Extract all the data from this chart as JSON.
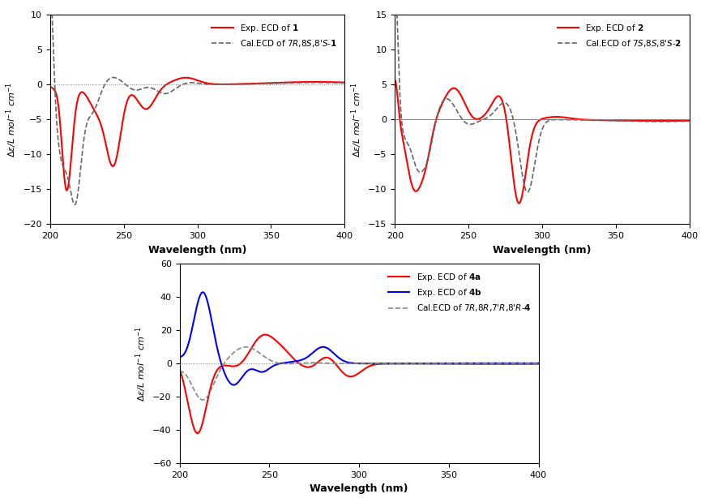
{
  "panel1": {
    "xlabel": "Wavelength (nm)",
    "xlim": [
      200,
      400
    ],
    "ylim": [
      -20,
      10
    ],
    "yticks": [
      -20,
      -15,
      -10,
      -5,
      0,
      5,
      10
    ],
    "xticks": [
      200,
      250,
      300,
      350,
      400
    ],
    "exp_color": "#FF0000",
    "cal_color": "#666666",
    "hline_style": "dotted"
  },
  "panel2": {
    "xlabel": "Wavelength (nm)",
    "xlim": [
      200,
      400
    ],
    "ylim": [
      -15,
      15
    ],
    "yticks": [
      -15,
      -10,
      -5,
      0,
      5,
      10,
      15
    ],
    "xticks": [
      200,
      250,
      300,
      350,
      400
    ],
    "exp_color": "#FF0000",
    "cal_color": "#666666",
    "hline_style": "solid"
  },
  "panel3": {
    "xlabel": "Wavelength (nm)",
    "xlim": [
      200,
      400
    ],
    "ylim": [
      -60,
      60
    ],
    "yticks": [
      -60,
      -40,
      -20,
      0,
      20,
      40,
      60
    ],
    "xticks": [
      200,
      250,
      300,
      350,
      400
    ],
    "exp4a_color": "#FF0000",
    "exp4b_color": "#0000FF",
    "cal_color": "#888888",
    "hline_style": "dotted"
  }
}
